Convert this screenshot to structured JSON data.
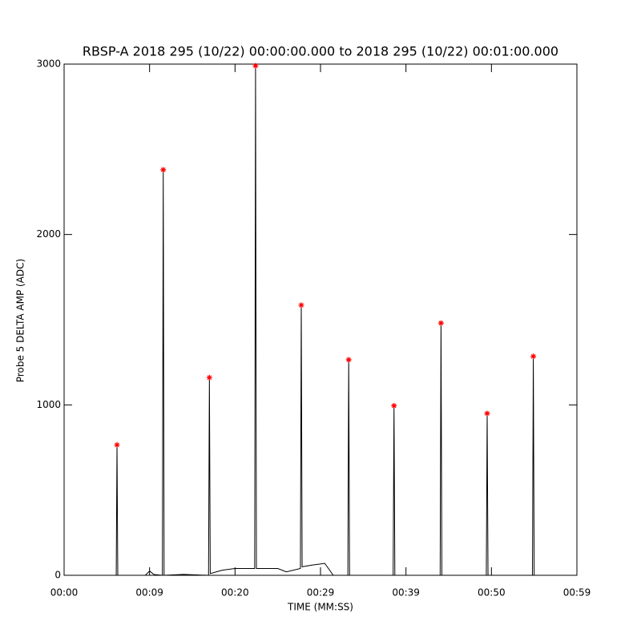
{
  "chart_data": {
    "type": "line",
    "title": "RBSP-A 2018 295 (10/22) 00:00:00.000 to 2018 295 (10/22) 00:01:00.000",
    "xlabel": "TIME (MM:SS)",
    "ylabel": "Probe 5 DELTA AMP (ADC)",
    "xlim": [
      0,
      60
    ],
    "xticks": [
      {
        "value": 0,
        "label": "00:00"
      },
      {
        "value": 10,
        "label": "00:09"
      },
      {
        "value": 20,
        "label": "00:20"
      },
      {
        "value": 30,
        "label": "00:29"
      },
      {
        "value": 40,
        "label": "00:39"
      },
      {
        "value": 50,
        "label": "00:50"
      },
      {
        "value": 60,
        "label": "00:59"
      }
    ],
    "ylim": [
      0,
      3000
    ],
    "yticks": [
      0,
      1000,
      2000,
      3000
    ],
    "series": [
      {
        "color": "#000000",
        "mode": "line",
        "x": [
          0,
          6.1,
          6.19,
          6.28,
          9.5,
          10.0,
          10.5,
          11.5,
          11.6,
          11.7,
          14,
          16.9,
          17.0,
          17.1,
          18.5,
          20,
          22.3,
          22.4,
          22.5,
          25,
          26,
          27.65,
          27.75,
          27.85,
          29,
          30.5,
          31.5,
          33.2,
          33.3,
          33.4,
          38.5,
          38.6,
          38.7,
          44.0,
          44.1,
          44.2,
          49.4,
          49.5,
          49.6,
          54.8,
          54.9,
          55.0,
          59
        ],
        "values": [
          0,
          0,
          765,
          0,
          0,
          25,
          5,
          0,
          2380,
          0,
          5,
          0,
          1160,
          10,
          30,
          40,
          40,
          2990,
          40,
          40,
          20,
          40,
          1585,
          50,
          60,
          70,
          0,
          0,
          1265,
          0,
          0,
          995,
          0,
          0,
          1480,
          0,
          0,
          950,
          0,
          0,
          1285,
          0,
          0
        ]
      },
      {
        "color": "#ff0000",
        "mode": "markers",
        "x": [
          6.19,
          11.6,
          17.0,
          22.4,
          27.75,
          33.3,
          38.6,
          44.1,
          49.5,
          54.9
        ],
        "values": [
          765,
          2380,
          1160,
          2990,
          1585,
          1265,
          995,
          1480,
          950,
          1285
        ]
      }
    ]
  }
}
